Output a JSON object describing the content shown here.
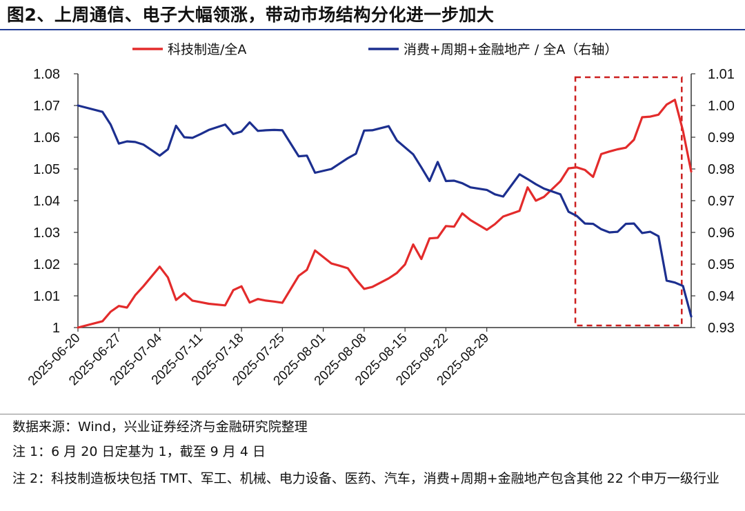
{
  "title": "图2、上周通信、电子大幅领涨，带动市场结构分化进一步加大",
  "chart_data": {
    "type": "line",
    "legend": [
      "科技制造/全A",
      "消费+周期+金融地产 / 全A（右轴）"
    ],
    "legend_position": "top-center",
    "colors": {
      "series1": "#e32b2b",
      "series2": "#1c2f8f",
      "highlight": "#cc1f1f",
      "axis": "#333333"
    },
    "x_ticks": [
      "2025-06-20",
      "2025-06-27",
      "2025-07-04",
      "2025-07-11",
      "2025-07-18",
      "2025-07-25",
      "2025-08-01",
      "2025-08-08",
      "2025-08-15",
      "2025-08-22",
      "2025-08-29"
    ],
    "x_range": [
      0,
      75
    ],
    "y_left": {
      "min": 1.0,
      "max": 1.08,
      "ticks": [
        "1",
        "1.01",
        "1.02",
        "1.03",
        "1.04",
        "1.05",
        "1.06",
        "1.07",
        "1.08"
      ]
    },
    "y_right": {
      "min": 0.93,
      "max": 1.01,
      "ticks": [
        "0.93",
        "0.94",
        "0.95",
        "0.96",
        "0.97",
        "0.98",
        "0.99",
        "1.00",
        "1.01"
      ]
    },
    "highlight_range_x": [
      61,
      73
    ],
    "series": [
      {
        "name": "科技制造/全A",
        "axis": "left",
        "x": [
          0,
          3,
          4,
          5,
          6,
          7,
          8,
          10,
          11,
          12,
          13,
          14,
          15,
          16,
          18,
          19,
          20,
          21,
          22,
          23,
          24,
          25,
          27,
          28,
          29,
          31,
          32,
          33,
          34,
          35,
          36,
          38,
          39,
          40,
          41,
          42,
          43,
          44,
          45,
          46,
          47,
          48,
          50,
          51,
          52,
          54,
          55,
          56,
          57,
          59,
          60,
          61,
          62,
          63,
          64,
          65,
          66,
          67,
          68,
          69,
          70,
          71,
          72,
          73,
          74,
          75
        ],
        "values": [
          1.0,
          1.002,
          1.005,
          1.0068,
          1.0063,
          1.0102,
          1.013,
          1.0192,
          1.0158,
          1.0087,
          1.0108,
          1.0085,
          1.008,
          1.0075,
          1.007,
          1.0118,
          1.013,
          1.0079,
          1.009,
          1.0085,
          1.0082,
          1.0078,
          1.0163,
          1.0182,
          1.0243,
          1.0202,
          1.0195,
          1.0187,
          1.0152,
          1.0122,
          1.0128,
          1.0155,
          1.0172,
          1.0199,
          1.0262,
          1.0216,
          1.0281,
          1.0283,
          1.032,
          1.0318,
          1.036,
          1.0339,
          1.0308,
          1.0326,
          1.035,
          1.0368,
          1.0442,
          1.04,
          1.0412,
          1.0461,
          1.0502,
          1.0505,
          1.0497,
          1.0475,
          1.0547,
          1.0555,
          1.0562,
          1.0567,
          1.0592,
          1.0663,
          1.0665,
          1.0671,
          1.0703,
          1.0718,
          1.062,
          1.0492
        ]
      },
      {
        "name": "消费+周期+金融地产 / 全A（右轴）",
        "axis": "right",
        "x": [
          0,
          3,
          4,
          5,
          6,
          7,
          8,
          10,
          11,
          12,
          13,
          14,
          15,
          16,
          18,
          19,
          20,
          21,
          22,
          23,
          24,
          25,
          27,
          28,
          29,
          31,
          32,
          33,
          34,
          35,
          36,
          38,
          39,
          40,
          41,
          42,
          43,
          44,
          45,
          46,
          47,
          48,
          50,
          51,
          52,
          54,
          55,
          56,
          57,
          59,
          60,
          61,
          62,
          63,
          64,
          65,
          66,
          67,
          68,
          69,
          70,
          71,
          72,
          73,
          74,
          75
        ],
        "values": [
          1.0,
          0.998,
          0.994,
          0.988,
          0.9887,
          0.9885,
          0.9877,
          0.9842,
          0.9862,
          0.9936,
          0.99,
          0.9898,
          0.991,
          0.9923,
          0.994,
          0.991,
          0.9918,
          0.9947,
          0.992,
          0.9922,
          0.9923,
          0.9922,
          0.984,
          0.9842,
          0.9788,
          0.98,
          0.9817,
          0.9834,
          0.9848,
          0.9921,
          0.9922,
          0.9935,
          0.989,
          0.9868,
          0.9846,
          0.9805,
          0.9762,
          0.9822,
          0.9762,
          0.9763,
          0.9755,
          0.9742,
          0.9734,
          0.972,
          0.9713,
          0.9783,
          0.9768,
          0.9752,
          0.9738,
          0.972,
          0.9665,
          0.9652,
          0.9628,
          0.9627,
          0.961,
          0.96,
          0.9602,
          0.9627,
          0.9628,
          0.9598,
          0.9602,
          0.9588,
          0.9448,
          0.9442,
          0.9431,
          0.9335
        ]
      }
    ]
  },
  "notes": {
    "source": "数据来源：Wind，兴业证券经济与金融研究院整理",
    "note1": "注 1：6 月 20 日定基为 1，截至 9 月 4 日",
    "note2": "注 2：科技制造板块包括 TMT、军工、机械、电力设备、医药、汽车，消费+周期+金融地产包含其他 22 个申万一级行业"
  }
}
